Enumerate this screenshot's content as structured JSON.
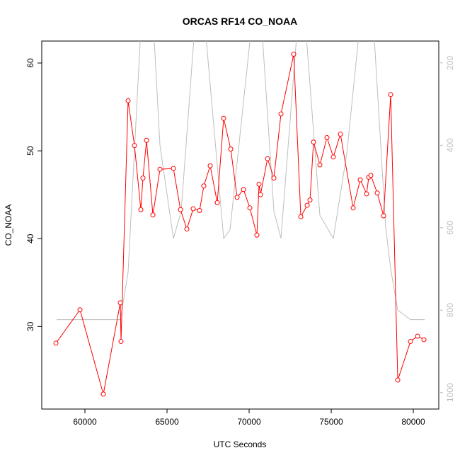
{
  "chart_data": {
    "type": "line",
    "title": "ORCAS RF14 CO_NOAA",
    "xlabel": "UTC Seconds",
    "ylabel": "CO_NOAA",
    "xlim": [
      57370,
      81550
    ],
    "ylim": [
      20.6,
      62.5
    ],
    "y2lim": [
      1040,
      147
    ],
    "xticks": [
      60000,
      65000,
      70000,
      75000,
      80000
    ],
    "yticks": [
      30,
      40,
      50,
      60
    ],
    "y2ticks": [
      200,
      400,
      600,
      800,
      1000
    ],
    "series": [
      {
        "color": "#bebebe",
        "axis": "y2",
        "markers": false,
        "x": [
          58276,
          62155,
          62629,
          63405,
          64181,
          64569,
          65388,
          65862,
          66681,
          67328,
          68448,
          68836,
          70129,
          70776,
          71509,
          71940,
          72931,
          73448,
          74310,
          75129,
          75948,
          76724,
          77586,
          78319,
          78621,
          79052,
          79828,
          80690
        ],
        "values": [
          823,
          823,
          708,
          116,
          116,
          400,
          626,
          560,
          116,
          116,
          626,
          605,
          116,
          116,
          560,
          626,
          116,
          116,
          570,
          626,
          420,
          116,
          116,
          600,
          700,
          800,
          823,
          823
        ]
      },
      {
        "color": "#ff0000",
        "axis": "y",
        "markers": true,
        "x": [
          58233,
          59698,
          61121,
          62155,
          62198,
          62629,
          63017,
          63405,
          63534,
          63750,
          64138,
          64569,
          65388,
          65819,
          66207,
          66595,
          66983,
          67241,
          67629,
          68060,
          68448,
          68879,
          69267,
          69655,
          70043,
          70474,
          70603,
          70690,
          71121,
          71509,
          71940,
          72716,
          73147,
          73534,
          73707,
          73922,
          74310,
          74741,
          75129,
          75560,
          76336,
          76767,
          77155,
          77284,
          77414,
          77802,
          78190,
          78621,
          79052,
          79828,
          80259,
          80647
        ],
        "values": [
          28.1,
          31.9,
          22.3,
          32.7,
          28.3,
          55.7,
          50.6,
          43.3,
          46.9,
          51.2,
          42.7,
          47.9,
          48.0,
          43.3,
          41.1,
          43.4,
          43.2,
          46.0,
          48.3,
          44.1,
          53.7,
          50.2,
          44.7,
          45.6,
          43.5,
          40.4,
          46.2,
          45.0,
          49.1,
          46.9,
          54.2,
          61.0,
          42.5,
          43.8,
          44.4,
          51.0,
          48.4,
          51.5,
          49.3,
          51.9,
          43.5,
          46.7,
          45.1,
          47.0,
          47.2,
          45.2,
          42.6,
          56.4,
          23.9,
          28.3,
          28.9,
          28.5
        ]
      }
    ]
  }
}
